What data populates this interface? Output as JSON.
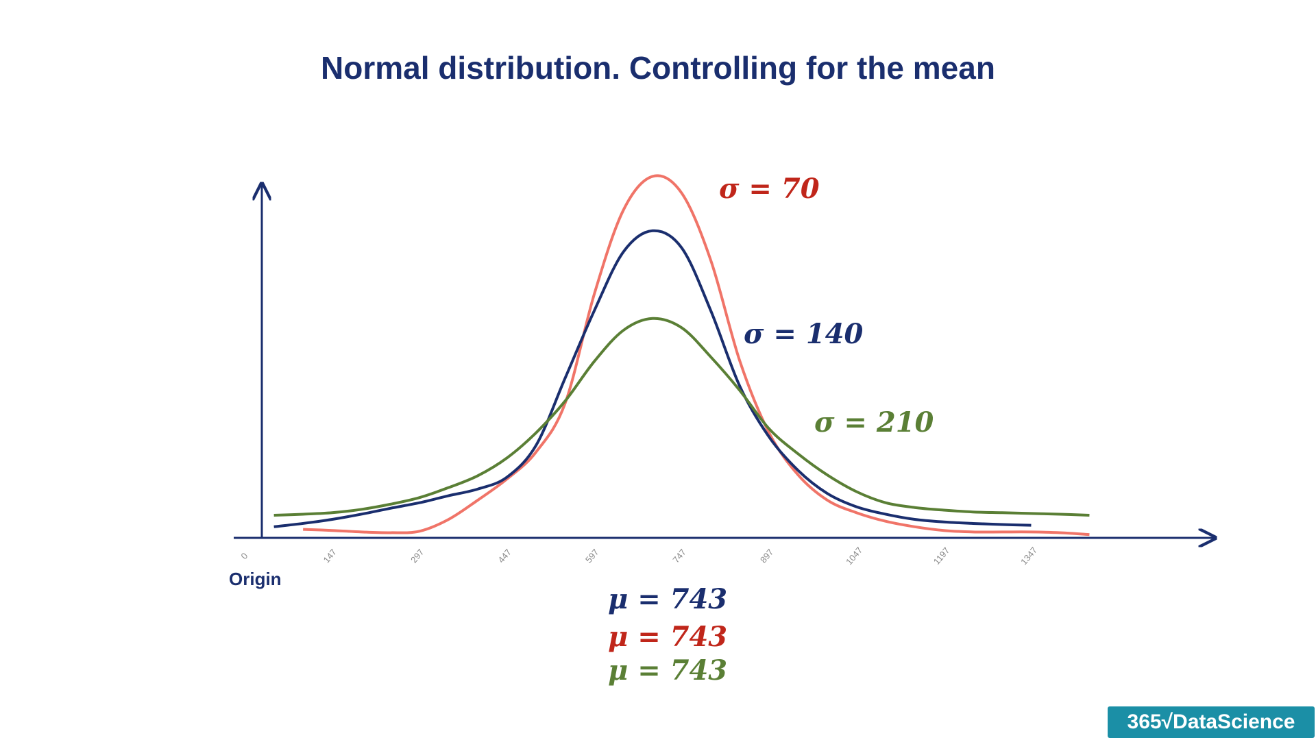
{
  "chart_data": {
    "type": "line",
    "title": "Normal distribution. Controlling for the mean",
    "x_label": "Origin",
    "x": [
      50,
      100,
      150,
      200,
      250,
      300,
      350,
      400,
      450,
      500,
      550,
      600,
      650,
      700,
      750,
      800,
      850,
      900,
      950,
      1000,
      1050,
      1100,
      1150,
      1200,
      1250,
      1300,
      1350,
      1400,
      1450
    ],
    "xlim": [
      -19,
      1666
    ],
    "xticks": [
      0,
      147,
      297,
      447,
      597,
      747,
      897,
      1047,
      1197,
      1347
    ],
    "ylim": [
      0,
      100
    ],
    "grid": false,
    "series": [
      {
        "name": "σ = 70",
        "color": "#f07468",
        "label_color": "#c0261a",
        "values": [
          null,
          2.3,
          2.0,
          1.6,
          1.4,
          1.8,
          5.0,
          10.2,
          15.9,
          23.2,
          36.4,
          65.9,
          88.6,
          97.7,
          93.2,
          75.0,
          47.7,
          28.4,
          17.0,
          10.2,
          6.8,
          4.5,
          3.0,
          2.0,
          1.6,
          1.6,
          1.6,
          1.4,
          0.9
        ]
      },
      {
        "name": "σ = 140",
        "color": "#1a2e6e",
        "label_color": "#1a2e6e",
        "values": [
          3.0,
          3.9,
          5.0,
          6.4,
          8.0,
          9.5,
          11.4,
          13.2,
          16.4,
          25.0,
          43.2,
          61.4,
          77.3,
          83.0,
          78.4,
          61.4,
          40.9,
          27.3,
          18.2,
          12.0,
          8.4,
          6.4,
          5.0,
          4.3,
          3.9,
          3.6,
          3.4,
          null,
          null
        ]
      },
      {
        "name": "σ = 210",
        "color": "#5a7f35",
        "label_color": "#5a7f35",
        "values": [
          6.1,
          6.4,
          6.8,
          7.7,
          9.1,
          10.9,
          13.6,
          16.8,
          21.6,
          28.4,
          37.0,
          47.7,
          56.1,
          59.3,
          56.8,
          48.9,
          39.8,
          29.5,
          22.7,
          17.0,
          12.5,
          9.5,
          8.2,
          7.5,
          7.0,
          6.8,
          6.6,
          6.4,
          6.1
        ]
      }
    ],
    "annotations": [
      {
        "text": "μ = 743",
        "color": "#1a2e6e"
      },
      {
        "text": "μ = 743",
        "color": "#c0261a"
      },
      {
        "text": "μ = 743",
        "color": "#5a7f35"
      }
    ],
    "brand": "365√DataScience"
  }
}
